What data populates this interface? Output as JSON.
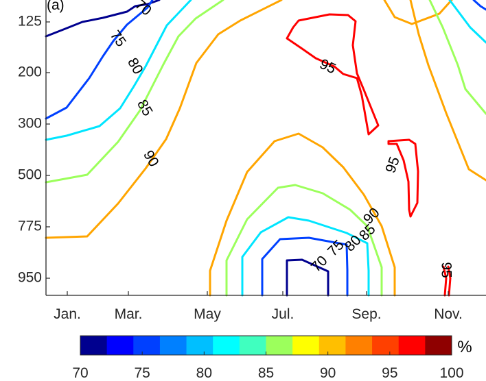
{
  "chart_data": {
    "type": "contour",
    "panel_label": "(a)",
    "x_ticks": [
      "Jan.",
      "Mar.",
      "May",
      "Jul.",
      "Sep.",
      "Nov."
    ],
    "y_ticks": [
      "125",
      "200",
      "300",
      "500",
      "775",
      "950"
    ],
    "contour_levels": [
      70,
      75,
      80,
      85,
      90,
      95
    ],
    "level_colors": {
      "70": "#00008f",
      "75": "#0040ff",
      "80": "#00e5ff",
      "85": "#9cff5c",
      "90": "#ffa500",
      "95": "#ff0000"
    },
    "inline_labels": [
      {
        "text": "70",
        "level": 70
      },
      {
        "text": "75",
        "level": 75
      },
      {
        "text": "80",
        "level": 80
      },
      {
        "text": "85",
        "level": 85
      },
      {
        "text": "90",
        "level": 90
      },
      {
        "text": "95",
        "level": 95
      },
      {
        "text": "95",
        "level": 95
      },
      {
        "text": "70",
        "level": 70
      },
      {
        "text": "75",
        "level": 75
      },
      {
        "text": "80",
        "level": 80
      },
      {
        "text": "85",
        "level": 85
      },
      {
        "text": "90",
        "level": 90
      },
      {
        "text": "95",
        "level": 95
      }
    ],
    "colorbar": {
      "ticks": [
        "70",
        "75",
        "80",
        "85",
        "90",
        "95",
        "100"
      ],
      "unit": "%",
      "range": [
        70,
        100
      ],
      "bins": 12,
      "colors": [
        "#00008f",
        "#0000ff",
        "#0040ff",
        "#0080ff",
        "#00bfff",
        "#00ffff",
        "#40ffbf",
        "#9cff5c",
        "#ffff00",
        "#ffbf00",
        "#ff8000",
        "#ff4000",
        "#ff0000",
        "#8f0000"
      ]
    }
  }
}
